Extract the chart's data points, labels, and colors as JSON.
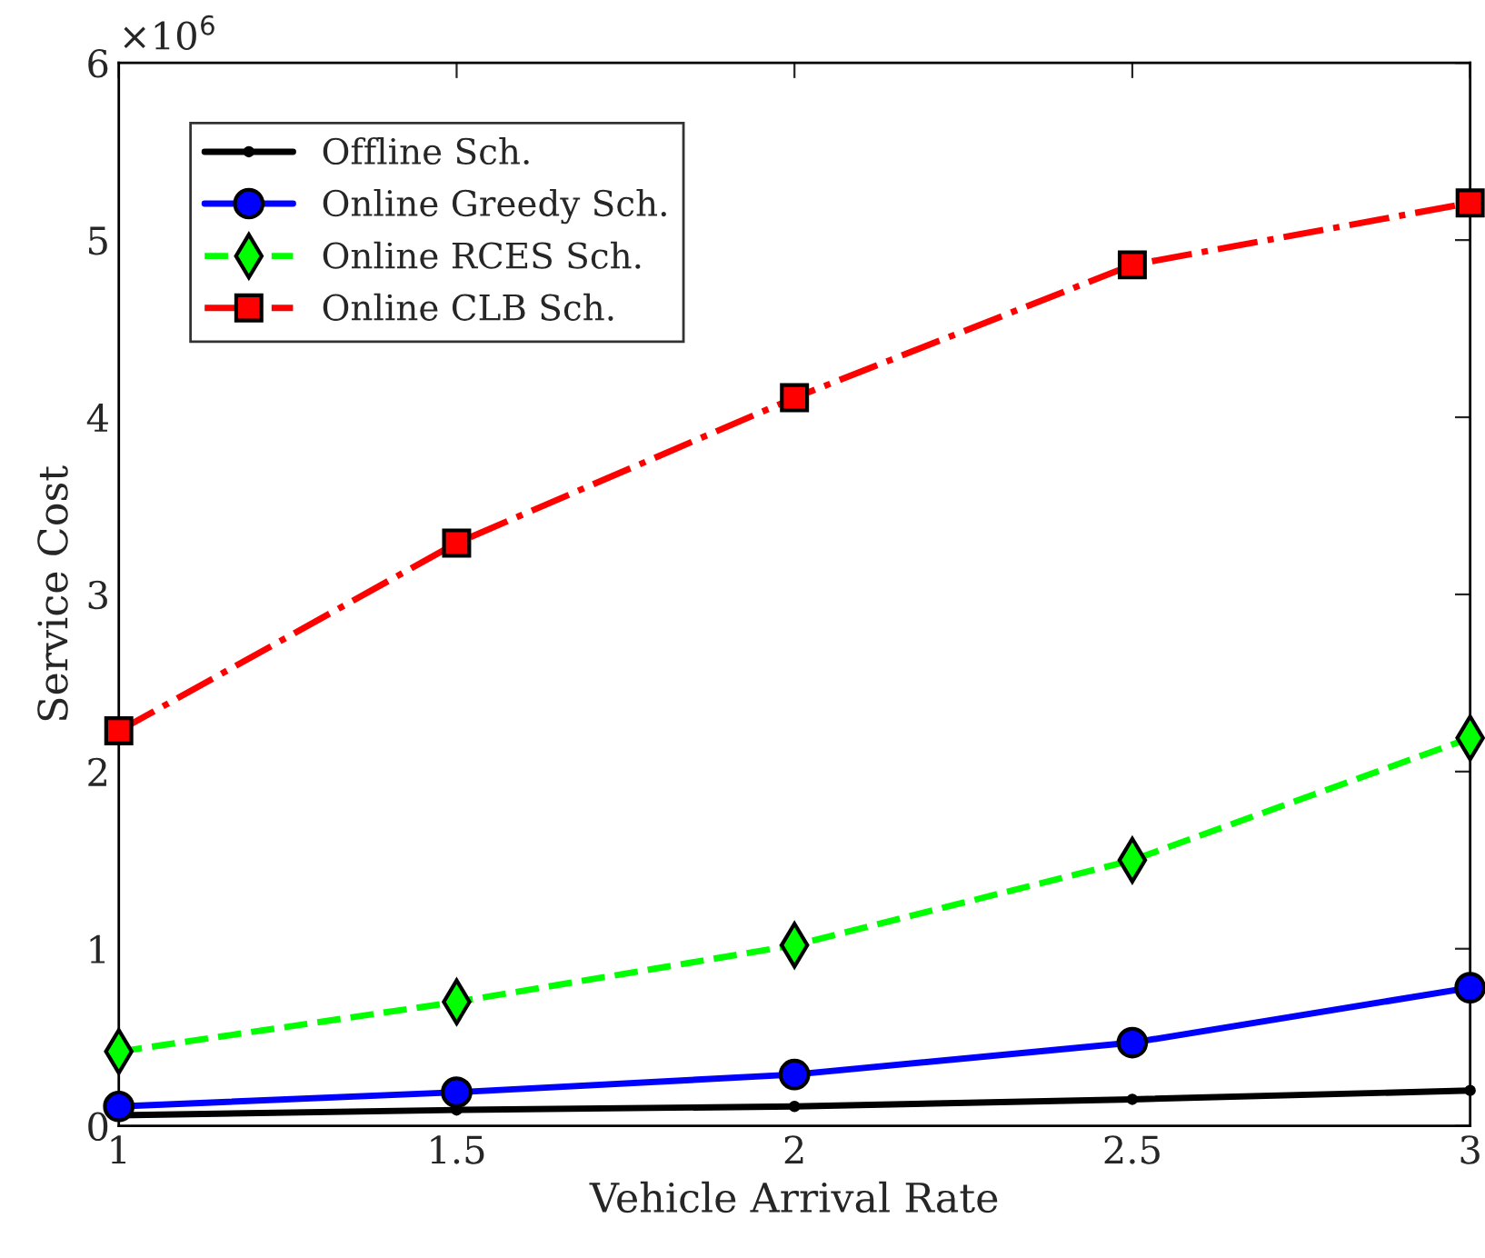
{
  "chart_data": {
    "type": "line",
    "xlabel": "Vehicle Arrival Rate",
    "ylabel": "Service Cost",
    "annotations": [
      "×10$^{6}$"
    ],
    "x": [
      1,
      1.5,
      2,
      2.5,
      3
    ],
    "series": [
      {
        "name": "Offline Sch.",
        "color": "#000000",
        "marker": "circle",
        "line_style": "solid",
        "values": [
          0.06,
          0.09,
          0.11,
          0.15,
          0.2
        ]
      },
      {
        "name": "Online Greedy Sch.",
        "color": "#0000ff",
        "marker": "circle",
        "line_style": "solid",
        "values": [
          0.11,
          0.19,
          0.29,
          0.47,
          0.78
        ]
      },
      {
        "name": "Online RCES Sch.",
        "color": "#00ff00",
        "marker": "diamond",
        "line_style": "dashed",
        "values": [
          0.42,
          0.7,
          1.02,
          1.5,
          2.19
        ]
      },
      {
        "name": "Online CLB Sch.",
        "color": "#ff0000",
        "marker": "square",
        "line_style": "dashdot",
        "values": [
          2.23,
          3.29,
          4.11,
          4.86,
          5.21
        ]
      }
    ],
    "xlim": [
      1,
      3
    ],
    "xticks": [
      1,
      1.5,
      2,
      2.5,
      3
    ],
    "ylim": [
      0,
      6
    ],
    "yticks": [
      0,
      1,
      2,
      3,
      4,
      5,
      6
    ],
    "grid": false,
    "legend": "top left"
  }
}
